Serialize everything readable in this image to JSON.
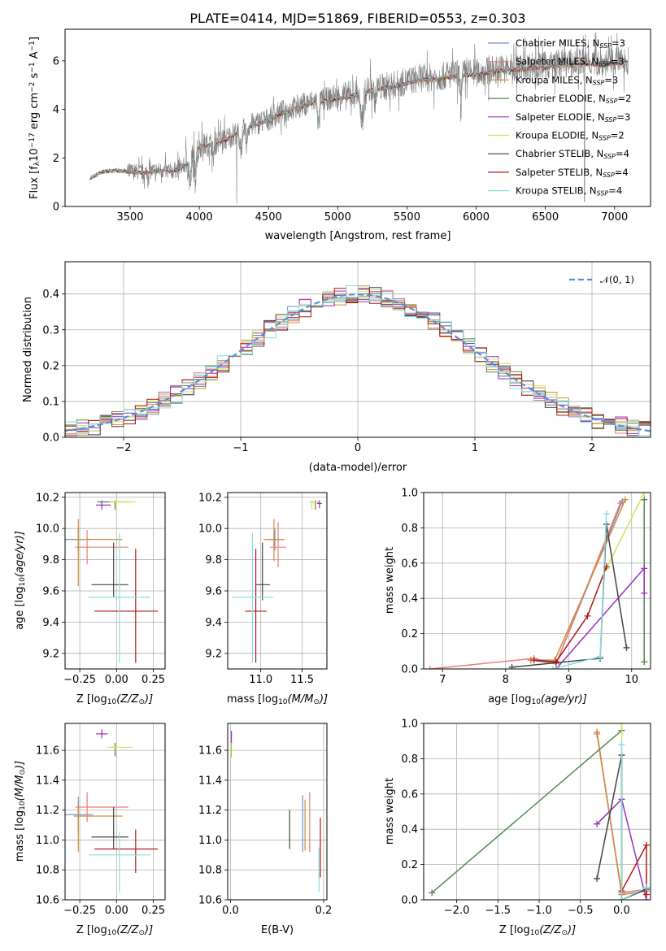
{
  "chart_data": [
    {
      "id": "spectrum",
      "type": "line",
      "title": "PLATE=0414, MJD=51869, FIBERID=0553, z=0.303",
      "xlabel": "wavelength [Angstrom, rest frame]",
      "ylabel": "Flux [f",
      "ylabel_parts": [
        "Flux [f",
        "λ",
        "10",
        "−17",
        " erg cm",
        "−2",
        " s",
        "−1",
        " A",
        "−1",
        "]"
      ],
      "xlim": [
        3030,
        7260
      ],
      "ylim": [
        0,
        7.3
      ],
      "xticks": [
        3500,
        4000,
        4500,
        5000,
        5500,
        6000,
        6500,
        7000
      ],
      "yticks": [
        0,
        2,
        4,
        6
      ],
      "data_envelope": {
        "x": [
          3200,
          3300,
          3400,
          3500,
          3600,
          3700,
          3800,
          3900,
          4000,
          4100,
          4200,
          4300,
          4400,
          4500,
          4600,
          4700,
          4800,
          4900,
          5000,
          5100,
          5200,
          5300,
          5400,
          5500,
          5600,
          5700,
          5800,
          5900,
          6000,
          6100,
          6200,
          6300,
          6400,
          6500,
          6600,
          6700,
          6800,
          6900,
          7000,
          7100
        ],
        "y": [
          1.15,
          1.45,
          1.5,
          1.45,
          1.4,
          1.5,
          1.45,
          1.7,
          2.5,
          2.6,
          2.8,
          3.2,
          3.4,
          3.6,
          3.9,
          4.1,
          4.3,
          4.4,
          4.5,
          4.6,
          4.8,
          4.9,
          5.0,
          5.15,
          5.3,
          5.3,
          5.4,
          5.5,
          5.5,
          5.6,
          5.7,
          5.7,
          5.8,
          5.8,
          5.9,
          5.9,
          6.0,
          5.9,
          6.0,
          6.0
        ]
      },
      "legend_placement": "upper right",
      "legend": [
        {
          "label": "Chabrier MILES, N",
          "sub": "SSP",
          "suffix": "=3",
          "color": "#6d8fcf"
        },
        {
          "label": "Salpeter MILES, N",
          "sub": "SSP",
          "suffix": "=3",
          "color": "#f07b74"
        },
        {
          "label": "Kroupa MILES, N",
          "sub": "SSP",
          "suffix": "=3",
          "color": "#d08b3a"
        },
        {
          "label": "Chabrier ELODIE, N",
          "sub": "SSP",
          "suffix": "=2",
          "color": "#4e8a4e"
        },
        {
          "label": "Salpeter ELODIE, N",
          "sub": "SSP",
          "suffix": "=3",
          "color": "#9a2fbf"
        },
        {
          "label": "Kroupa ELODIE, N",
          "sub": "SSP",
          "suffix": "=2",
          "color": "#d9e05a"
        },
        {
          "label": "Chabrier STELIB, N",
          "sub": "SSP",
          "suffix": "=4",
          "color": "#444444"
        },
        {
          "label": "Salpeter STELIB, N",
          "sub": "SSP",
          "suffix": "=4",
          "color": "#b01515"
        },
        {
          "label": "Kroupa STELIB, N",
          "sub": "SSP",
          "suffix": "=4",
          "color": "#86dde0"
        }
      ]
    },
    {
      "id": "residuals",
      "type": "histogram",
      "xlabel": "(data-model)/error",
      "ylabel": "Normed distribution",
      "xlim": [
        -2.5,
        2.5
      ],
      "ylim": [
        0,
        0.49
      ],
      "xticks": [
        -2,
        -1,
        0,
        1,
        2
      ],
      "xtick_labels": [
        "−2",
        "−1",
        "0",
        "1",
        "2"
      ],
      "yticks": [
        0.0,
        0.1,
        0.2,
        0.3,
        0.4
      ],
      "ytick_labels": [
        "0.0",
        "0.1",
        "0.2",
        "0.3",
        "0.4"
      ],
      "bin_width": 0.1,
      "curve": {
        "name": "𝒩(0, 1)",
        "color": "#5b8ed6"
      },
      "legend_placement": "upper right"
    },
    {
      "id": "age-vs-Z",
      "type": "errorbar",
      "xlabel": "Z [log",
      "xlabel_parts": [
        "Z [log",
        "10",
        "(Z/Z",
        "⊙",
        ")]"
      ],
      "ylabel": "age  [log",
      "ylabel_parts": [
        "age  [log",
        "10",
        "(age/yr)]"
      ],
      "xlim": [
        -0.35,
        0.33
      ],
      "ylim": [
        9.1,
        10.23
      ],
      "xticks": [
        -0.25,
        0.0,
        0.25
      ],
      "xtick_labels": [
        "−0.25",
        "0.00",
        "0.25"
      ],
      "yticks": [
        9.2,
        9.4,
        9.6,
        9.8,
        10.0,
        10.2
      ],
      "points": [
        {
          "color": "#6d8fcf",
          "x": -0.26,
          "y": 9.93,
          "xerr": [
            0.1,
            0.1
          ],
          "yerr": [
            0.07,
            0.07
          ]
        },
        {
          "color": "#f07b74",
          "x": -0.2,
          "y": 9.88,
          "xerr": [
            0.08,
            0.28
          ],
          "yerr": [
            0.11,
            0.11
          ]
        },
        {
          "color": "#d08b3a",
          "x": -0.26,
          "y": 9.93,
          "xerr": [
            0.03,
            0.3
          ],
          "yerr": [
            0.3,
            0.13
          ]
        },
        {
          "color": "#4e8a4e",
          "x": -0.01,
          "y": 10.17,
          "xerr": [
            0.12,
            0.1
          ],
          "yerr": [
            0.05,
            0.01
          ]
        },
        {
          "color": "#9a2fbf",
          "x": -0.1,
          "y": 10.15,
          "xerr": [
            0.04,
            0.06
          ],
          "yerr": [
            0.03,
            0.03
          ]
        },
        {
          "color": "#d9e05a",
          "x": 0.0,
          "y": 10.17,
          "xerr": [
            0.05,
            0.13
          ],
          "yerr": [
            0.05,
            0.01
          ]
        },
        {
          "color": "#444444",
          "x": -0.02,
          "y": 9.64,
          "xerr": [
            0.15,
            0.1
          ],
          "yerr": [
            0.08,
            0.27
          ]
        },
        {
          "color": "#b01515",
          "x": 0.13,
          "y": 9.47,
          "xerr": [
            0.28,
            0.15
          ],
          "yerr": [
            0.33,
            0.4
          ]
        },
        {
          "color": "#86dde0",
          "x": 0.02,
          "y": 9.56,
          "xerr": [
            0.21,
            0.21
          ],
          "yerr": [
            0.42,
            0.41
          ]
        }
      ]
    },
    {
      "id": "age-vs-mass",
      "type": "errorbar",
      "xlabel": "mass [log",
      "xlabel_parts": [
        "mass [log",
        "10",
        "(M/M",
        "⊙",
        ")]"
      ],
      "xlim": [
        10.6,
        11.8
      ],
      "ylim": [
        9.1,
        10.23
      ],
      "xticks": [
        11.0,
        11.5
      ],
      "xtick_labels": [
        "11.0",
        "11.5"
      ],
      "yticks": [
        9.2,
        9.4,
        9.6,
        9.8,
        10.0,
        10.2
      ],
      "points": [
        {
          "color": "#6d8fcf",
          "x": 11.17,
          "y": 9.93,
          "xerr": [
            0.12,
            0.12
          ],
          "yerr": [
            0.07,
            0.07
          ]
        },
        {
          "color": "#f07b74",
          "x": 11.21,
          "y": 9.88,
          "xerr": [
            0.1,
            0.1
          ],
          "yerr": [
            0.13,
            0.16
          ]
        },
        {
          "color": "#d08b3a",
          "x": 11.16,
          "y": 9.93,
          "xerr": [
            0.12,
            0.12
          ],
          "yerr": [
            0.14,
            0.13
          ]
        },
        {
          "color": "#4e8a4e",
          "x": 11.66,
          "y": 10.17,
          "xerr": [
            0.05,
            0.05
          ],
          "yerr": [
            0.05,
            0.01
          ]
        },
        {
          "color": "#9a2fbf",
          "x": 11.71,
          "y": 10.16,
          "xerr": [
            0.03,
            0.03
          ],
          "yerr": [
            0.03,
            0.02
          ]
        },
        {
          "color": "#d9e05a",
          "x": 11.62,
          "y": 10.17,
          "xerr": [
            0.03,
            0.08
          ],
          "yerr": [
            0.05,
            0.01
          ]
        },
        {
          "color": "#444444",
          "x": 11.02,
          "y": 9.64,
          "xerr": [
            0.08,
            0.09
          ],
          "yerr": [
            0.1,
            0.27
          ]
        },
        {
          "color": "#b01515",
          "x": 10.94,
          "y": 9.47,
          "xerr": [
            0.13,
            0.13
          ],
          "yerr": [
            0.33,
            0.4
          ]
        },
        {
          "color": "#86dde0",
          "x": 10.9,
          "y": 9.56,
          "xerr": [
            0.25,
            0.25
          ],
          "yerr": [
            0.42,
            0.41
          ]
        }
      ]
    },
    {
      "id": "weight-vs-age",
      "type": "line",
      "xlabel": "age  [log",
      "xlabel_parts": [
        "age  [log",
        "10",
        "(age/yr)]"
      ],
      "ylabel": "mass weight",
      "xlim": [
        6.7,
        10.3
      ],
      "ylim": [
        0,
        1.0
      ],
      "xticks": [
        7,
        8,
        9,
        10
      ],
      "yticks": [
        0.0,
        0.2,
        0.4,
        0.6,
        0.8,
        1.0
      ],
      "series": [
        {
          "color": "#6d8fcf",
          "x": [
            8.4,
            8.8,
            9.85
          ],
          "y": [
            0.05,
            0.03,
            0.95
          ]
        },
        {
          "color": "#f07b74",
          "x": [
            6.8,
            8.45,
            8.8,
            9.82
          ],
          "y": [
            0.0,
            0.06,
            0.03,
            0.94
          ]
        },
        {
          "color": "#d08b3a",
          "x": [
            8.4,
            8.78,
            9.9
          ],
          "y": [
            0.05,
            0.05,
            0.96
          ]
        },
        {
          "color": "#4e8a4e",
          "x": [
            10.2,
            10.2
          ],
          "y": [
            0.96,
            0.04
          ]
        },
        {
          "color": "#9a2fbf",
          "x": [
            8.8,
            10.2,
            10.2
          ],
          "y": [
            0.0,
            0.57,
            0.43
          ]
        },
        {
          "color": "#d9e05a",
          "x": [
            9.6,
            10.2
          ],
          "y": [
            0.57,
            1.0
          ]
        },
        {
          "color": "#444444",
          "x": [
            8.1,
            9.5,
            9.6,
            9.92
          ],
          "y": [
            0.01,
            0.06,
            0.82,
            0.12
          ]
        },
        {
          "color": "#b01515",
          "x": [
            8.45,
            8.8,
            9.3,
            9.6
          ],
          "y": [
            0.05,
            0.04,
            0.3,
            0.58
          ]
        },
        {
          "color": "#86dde0",
          "x": [
            8.75,
            9.5,
            9.6
          ],
          "y": [
            0.0,
            0.07,
            0.88
          ]
        }
      ]
    },
    {
      "id": "mass-vs-Z",
      "type": "errorbar",
      "xlabel": "Z [log",
      "xlabel_parts": [
        "Z [log",
        "10",
        "(Z/Z",
        "⊙",
        ")]"
      ],
      "ylabel": "mass [log",
      "ylabel_parts": [
        "mass [log",
        "10",
        "(M/M",
        "⊙",
        ")]"
      ],
      "xlim": [
        -0.35,
        0.33
      ],
      "ylim": [
        10.6,
        11.78
      ],
      "xticks": [
        -0.25,
        0.0,
        0.25
      ],
      "xtick_labels": [
        "−0.25",
        "0.00",
        "0.25"
      ],
      "yticks": [
        10.6,
        10.8,
        11.0,
        11.2,
        11.4,
        11.6
      ],
      "points": [
        {
          "color": "#6d8fcf",
          "x": -0.26,
          "y": 11.17,
          "xerr": [
            0.1,
            0.1
          ],
          "yerr": [
            0.12,
            0.12
          ]
        },
        {
          "color": "#f07b74",
          "x": -0.2,
          "y": 11.22,
          "xerr": [
            0.08,
            0.28
          ],
          "yerr": [
            0.1,
            0.1
          ]
        },
        {
          "color": "#d08b3a",
          "x": -0.26,
          "y": 11.16,
          "xerr": [
            0.03,
            0.3
          ],
          "yerr": [
            0.24,
            0.08
          ]
        },
        {
          "color": "#4e8a4e",
          "x": -0.01,
          "y": 11.62,
          "xerr": [
            0.02,
            0.02
          ],
          "yerr": [
            0.06,
            0.03
          ]
        },
        {
          "color": "#9a2fbf",
          "x": -0.1,
          "y": 11.71,
          "xerr": [
            0.04,
            0.04
          ],
          "yerr": [
            0.03,
            0.03
          ]
        },
        {
          "color": "#d9e05a",
          "x": 0.0,
          "y": 11.62,
          "xerr": [
            0.06,
            0.11
          ],
          "yerr": [
            0.03,
            0.03
          ]
        },
        {
          "color": "#444444",
          "x": -0.02,
          "y": 11.02,
          "xerr": [
            0.15,
            0.1
          ],
          "yerr": [
            0.08,
            0.2
          ]
        },
        {
          "color": "#b01515",
          "x": 0.13,
          "y": 10.94,
          "xerr": [
            0.28,
            0.15
          ],
          "yerr": [
            0.16,
            0.13
          ]
        },
        {
          "color": "#86dde0",
          "x": 0.02,
          "y": 10.9,
          "xerr": [
            0.21,
            0.21
          ],
          "yerr": [
            0.25,
            0.15
          ]
        }
      ]
    },
    {
      "id": "mass-vs-EBV",
      "type": "errorbar",
      "xlabel": "E(B-V)",
      "xlim": [
        -0.006,
        0.207
      ],
      "ylim": [
        10.6,
        11.78
      ],
      "xticks": [
        0.0,
        0.2
      ],
      "xtick_labels": [
        "0.0",
        "0.2"
      ],
      "yticks": [
        10.6,
        10.8,
        11.0,
        11.2,
        11.4,
        11.6
      ],
      "points": [
        {
          "color": "#6d8fcf",
          "x": 0.155,
          "y": 11.11,
          "yerr": [
            0.19,
            0.19
          ]
        },
        {
          "color": "#f07b74",
          "x": 0.17,
          "y": 11.12,
          "yerr": [
            0.2,
            0.2
          ]
        },
        {
          "color": "#d08b3a",
          "x": 0.16,
          "y": 11.1,
          "yerr": [
            0.17,
            0.17
          ]
        },
        {
          "color": "#4e8a4e",
          "x": 0.001,
          "y": 11.6,
          "yerr": [
            0.05,
            0.05
          ]
        },
        {
          "color": "#9a2fbf",
          "x": 0.002,
          "y": 11.69,
          "yerr": [
            0.04,
            0.04
          ]
        },
        {
          "color": "#d9e05a",
          "x": 0.0,
          "y": 11.6,
          "yerr": [
            0.05,
            0.05
          ]
        },
        {
          "color": "#444444",
          "x": 0.127,
          "y": 11.07,
          "yerr": [
            0.13,
            0.13
          ]
        },
        {
          "color": "#b01515",
          "x": 0.193,
          "y": 10.95,
          "yerr": [
            0.2,
            0.2
          ]
        },
        {
          "color": "#86dde0",
          "x": 0.19,
          "y": 10.8,
          "yerr": [
            0.15,
            0.15
          ]
        }
      ]
    },
    {
      "id": "weight-vs-Z",
      "type": "line",
      "xlabel": "Z [log",
      "xlabel_parts": [
        "Z [log",
        "10",
        "(Z/Z",
        "⊙",
        ")]"
      ],
      "ylabel": "mass weight",
      "xlim": [
        -2.4,
        0.35
      ],
      "ylim": [
        0,
        1.0
      ],
      "xticks": [
        -2.0,
        -1.5,
        -1.0,
        -0.5,
        0.0
      ],
      "xtick_labels": [
        "−2.0",
        "−1.5",
        "−1.0",
        "−0.5",
        "0.0"
      ],
      "yticks": [
        0.0,
        0.2,
        0.4,
        0.6,
        0.8,
        1.0
      ],
      "series": [
        {
          "color": "#6d8fcf",
          "x": [
            -0.3,
            0.0,
            0.3
          ],
          "y": [
            0.95,
            0.03,
            0.05
          ]
        },
        {
          "color": "#f07b74",
          "x": [
            -0.3,
            0.0,
            0.3
          ],
          "y": [
            0.94,
            0.04,
            0.06
          ]
        },
        {
          "color": "#d08b3a",
          "x": [
            -0.3,
            0.0,
            0.3
          ],
          "y": [
            0.95,
            0.03,
            0.05
          ]
        },
        {
          "color": "#4e8a4e",
          "x": [
            -2.3,
            0.0
          ],
          "y": [
            0.04,
            0.96
          ]
        },
        {
          "color": "#9a2fbf",
          "x": [
            -0.3,
            0.0,
            0.3
          ],
          "y": [
            0.43,
            0.57,
            0.0
          ]
        },
        {
          "color": "#d9e05a",
          "x": [
            0.0,
            0.0
          ],
          "y": [
            1.0,
            0.05
          ]
        },
        {
          "color": "#444444",
          "x": [
            -0.3,
            0.0,
            0.0,
            0.3
          ],
          "y": [
            0.12,
            0.82,
            0.0,
            0.06
          ]
        },
        {
          "color": "#b01515",
          "x": [
            0.0,
            0.3,
            0.3
          ],
          "y": [
            0.05,
            0.31,
            0.03
          ]
        },
        {
          "color": "#86dde0",
          "x": [
            0.0,
            0.0,
            0.3
          ],
          "y": [
            0.88,
            0.0,
            0.07
          ]
        }
      ]
    }
  ]
}
